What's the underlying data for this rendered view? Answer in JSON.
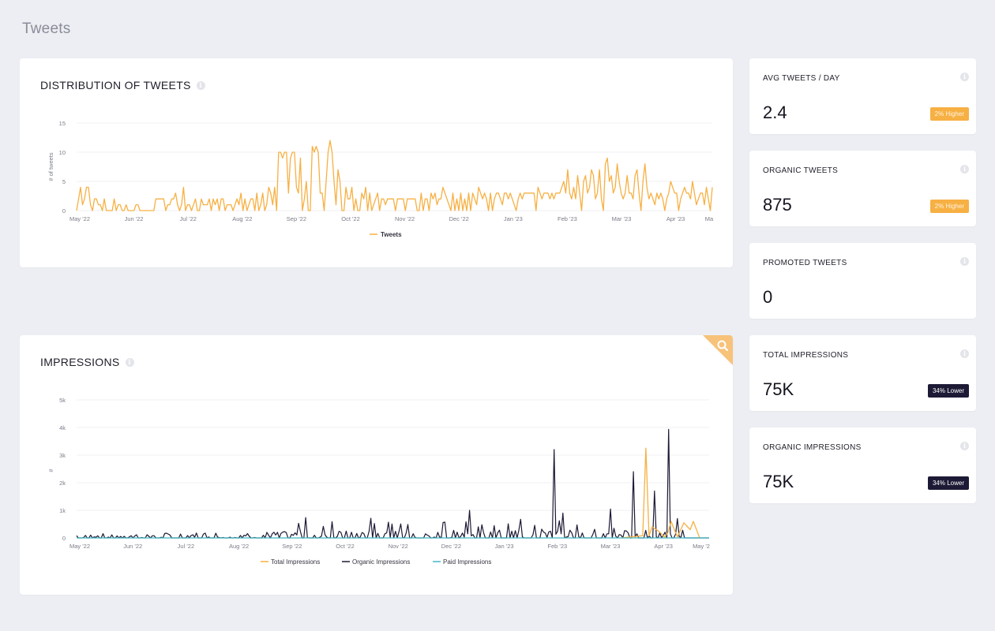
{
  "page": {
    "title": "Tweets"
  },
  "colors": {
    "orange": "#f7b043",
    "navy": "#1c1a35",
    "teal": "#3fb8c4",
    "grid": "#f0f1f4",
    "axis_text": "#7a7d88"
  },
  "distribution": {
    "title": "DISTRIBUTION OF TWEETS",
    "info_icon": "info-icon"
  },
  "impressions": {
    "title": "IMPRESSIONS",
    "info_icon": "info-icon",
    "corner_icon": "search-icon"
  },
  "stats": [
    {
      "title": "AVG TWEETS / DAY",
      "value": "2.4",
      "badge": "2% Higher",
      "badge_type": "higher"
    },
    {
      "title": "ORGANIC TWEETS",
      "value": "875",
      "badge": "2% Higher",
      "badge_type": "higher"
    },
    {
      "title": "PROMOTED TWEETS",
      "value": "0",
      "badge": "",
      "badge_type": ""
    },
    {
      "title": "TOTAL IMPRESSIONS",
      "value": "75K",
      "badge": "34% Lower",
      "badge_type": "lower"
    },
    {
      "title": "ORGANIC IMPRESSIONS",
      "value": "75K",
      "badge": "34% Lower",
      "badge_type": "lower"
    }
  ],
  "chart_data": [
    {
      "type": "line",
      "title": "DISTRIBUTION OF TWEETS",
      "xlabel": "",
      "ylabel": "# of tweets",
      "ylim": [
        0,
        15
      ],
      "yticks": [
        "0",
        "5",
        "10",
        "15"
      ],
      "x_tick_labels": [
        "May '22",
        "Jun '22",
        "Jul '22",
        "Aug '22",
        "Sep '22",
        "Oct '22",
        "Nov '22",
        "Dec '22",
        "Jan '23",
        "Feb '23",
        "Mar '23",
        "Apr '23",
        "Ma"
      ],
      "legend": [
        "Tweets"
      ],
      "series": [
        {
          "name": "Tweets",
          "color": "#f7b043",
          "values": [
            0,
            2,
            4,
            1,
            2,
            4,
            4,
            1,
            0,
            2,
            2,
            1,
            1,
            0,
            2,
            0,
            0,
            0,
            0,
            2,
            0,
            1,
            1,
            0,
            0,
            1,
            0,
            0,
            0,
            0,
            1,
            1,
            0,
            0,
            0,
            0,
            0,
            0,
            0,
            0,
            2,
            2,
            2,
            2,
            2,
            0,
            1,
            1,
            2,
            2,
            3,
            1,
            0,
            1,
            4,
            0,
            1,
            1,
            0,
            1,
            2,
            0,
            0,
            2,
            1,
            1,
            1,
            2,
            0,
            2,
            1,
            2,
            0,
            2,
            2,
            0,
            1,
            1,
            1,
            0,
            1,
            2,
            1,
            3,
            0,
            2,
            0,
            1,
            2,
            2,
            0,
            3,
            0,
            1,
            3,
            0,
            1,
            4,
            3,
            1,
            4,
            0,
            10,
            10,
            9,
            10,
            10,
            3,
            9,
            10,
            10,
            4,
            3,
            9,
            0,
            2,
            5,
            0,
            0,
            11,
            10,
            11,
            10,
            3,
            3,
            0,
            5,
            10,
            12,
            10,
            5,
            1,
            7,
            5,
            0,
            0,
            4,
            2,
            2,
            4,
            0,
            2,
            0,
            0,
            3,
            2,
            4,
            0,
            3,
            0,
            1,
            2,
            3,
            0,
            2,
            2,
            1,
            2,
            2,
            2,
            2,
            0,
            2,
            2,
            2,
            2,
            0,
            2,
            2,
            2,
            2,
            2,
            0,
            0,
            3,
            0,
            2,
            2,
            0,
            3,
            2,
            3,
            1,
            2,
            2,
            4,
            3,
            2,
            1,
            0,
            3,
            0,
            2,
            0,
            3,
            0,
            2,
            0,
            3,
            0,
            3,
            2,
            1,
            4,
            3,
            2,
            3,
            2,
            0,
            3,
            0,
            2,
            3,
            3,
            2,
            1,
            3,
            3,
            2,
            3,
            2,
            1,
            0,
            2,
            3,
            2,
            3,
            3,
            3,
            3,
            3,
            3,
            0,
            4,
            3,
            2,
            3,
            3,
            3,
            2,
            3,
            2,
            3,
            3,
            3,
            4,
            5,
            3,
            7,
            3,
            2,
            4,
            2,
            6,
            3,
            0,
            5,
            6,
            3,
            4,
            7,
            6,
            2,
            3,
            7,
            2,
            0,
            8,
            9,
            5,
            6,
            3,
            4,
            8,
            5,
            3,
            2,
            3,
            6,
            3,
            3,
            2,
            6,
            7,
            3,
            0,
            5,
            8,
            4,
            2,
            3,
            2,
            1,
            3,
            2,
            3,
            2,
            0,
            2,
            3,
            5,
            4,
            3,
            3,
            0,
            2,
            3,
            4,
            3,
            3,
            2,
            5,
            3,
            1,
            2,
            3,
            3,
            1,
            4,
            2,
            0,
            4
          ]
        }
      ]
    },
    {
      "type": "line",
      "title": "IMPRESSIONS",
      "xlabel": "",
      "ylabel": "#",
      "ylim": [
        0,
        5000
      ],
      "yticks": [
        "0",
        "1k",
        "2k",
        "3k",
        "4k",
        "5k"
      ],
      "x_tick_labels": [
        "May '22",
        "Jun '22",
        "Jul '22",
        "Aug '22",
        "Sep '22",
        "Oct '22",
        "Nov '22",
        "Dec '22",
        "Jan '23",
        "Feb '23",
        "Mar '23",
        "Apr '23",
        "May '2"
      ],
      "legend": [
        "Total Impressions",
        "Organic Impressions",
        "Paid Impressions"
      ],
      "series": [
        {
          "name": "Total Impressions",
          "color": "#f7b043",
          "spikes": [
            [
              0.86,
              0
            ],
            [
              0.895,
              80
            ],
            [
              0.9,
              3250
            ],
            [
              0.905,
              80
            ],
            [
              0.91,
              400
            ],
            [
              0.92,
              250
            ],
            [
              0.93,
              30
            ],
            [
              0.935,
              200
            ],
            [
              0.94,
              600
            ],
            [
              0.945,
              300
            ],
            [
              0.95,
              40
            ],
            [
              0.96,
              550
            ],
            [
              0.97,
              300
            ],
            [
              0.975,
              600
            ],
            [
              0.985,
              0
            ]
          ]
        },
        {
          "name": "Organic Impressions",
          "color": "#1c1a35",
          "spikes": [
            [
              0.61,
              0
            ],
            [
              0.62,
              1000
            ],
            [
              0.625,
              80
            ],
            [
              0.75,
              0
            ],
            [
              0.755,
              3200
            ],
            [
              0.76,
              500
            ],
            [
              0.765,
              200
            ],
            [
              0.77,
              900
            ],
            [
              0.78,
              50
            ],
            [
              0.845,
              1050
            ],
            [
              0.855,
              100
            ],
            [
              0.87,
              500
            ],
            [
              0.88,
              2400
            ],
            [
              0.888,
              100
            ],
            [
              0.905,
              450
            ],
            [
              0.915,
              1700
            ],
            [
              0.925,
              100
            ],
            [
              0.935,
              3930
            ],
            [
              0.943,
              200
            ],
            [
              0.95,
              700
            ],
            [
              0.955,
              500
            ],
            [
              0.96,
              80
            ]
          ]
        },
        {
          "name": "Paid Impressions",
          "color": "#3fb8c4",
          "values": [
            0,
            0
          ]
        }
      ]
    }
  ]
}
